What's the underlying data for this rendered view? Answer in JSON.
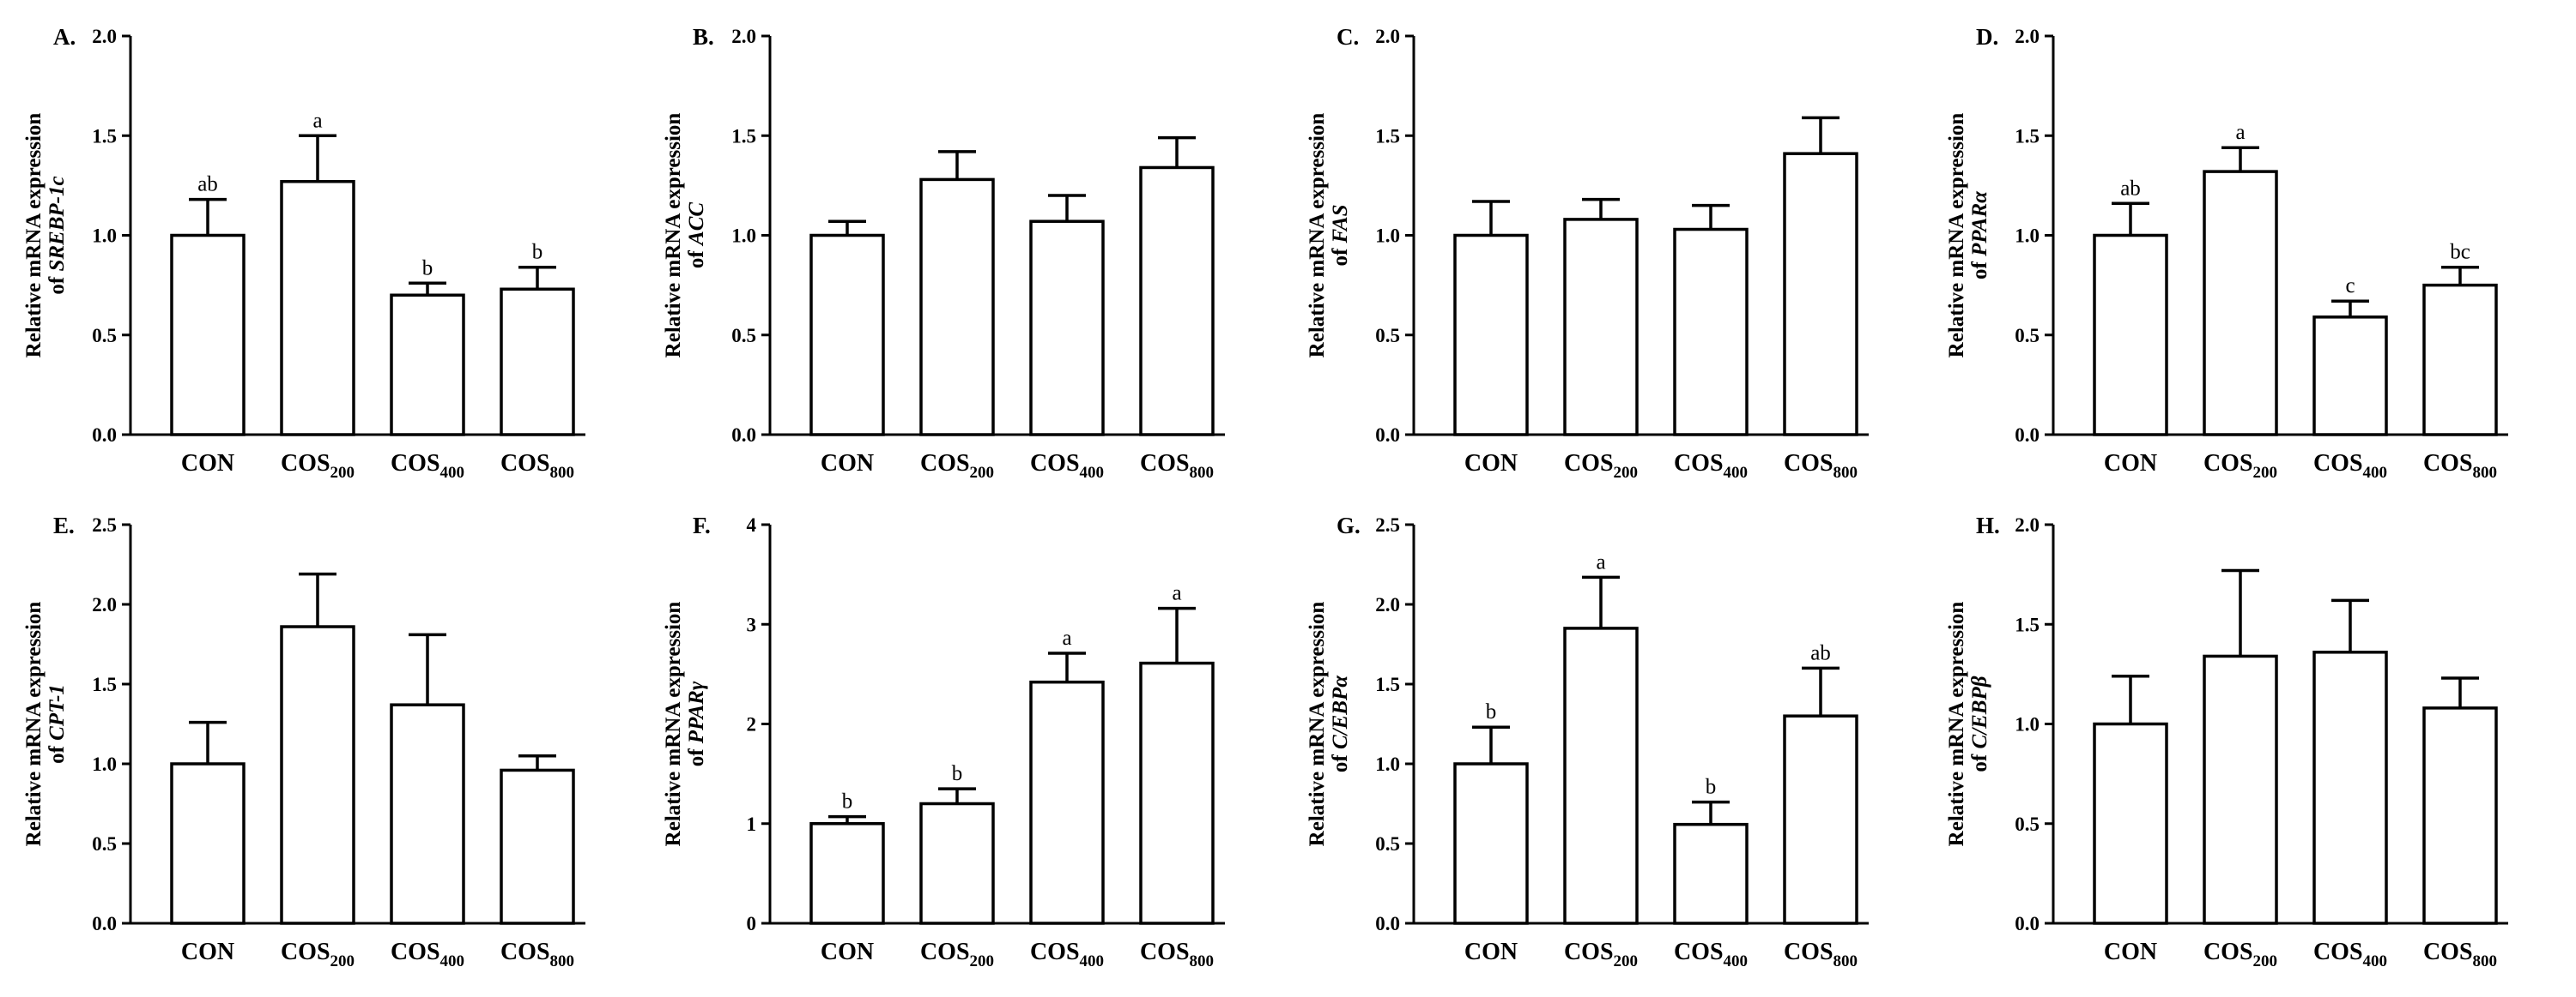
{
  "figure": {
    "background": "#ffffff",
    "bar_fill": "#ffffff",
    "stroke": "#000000"
  },
  "chart_data": [
    {
      "type": "bar",
      "panel": "A.",
      "ylabel_line1": "Relative mRNA expression",
      "ylabel_prefix": "of ",
      "ylabel_gene": "SREBP-1c",
      "categories": [
        {
          "main": "CON",
          "sub": ""
        },
        {
          "main": "COS",
          "sub": "200"
        },
        {
          "main": "COS",
          "sub": "400"
        },
        {
          "main": "COS",
          "sub": "800"
        }
      ],
      "values": [
        1.0,
        1.27,
        0.7,
        0.73
      ],
      "errors": [
        0.18,
        0.23,
        0.06,
        0.11
      ],
      "letters": [
        "ab",
        "a",
        "b",
        "b"
      ],
      "ylim": [
        0,
        2.0
      ],
      "yticks": [
        "0.0",
        "0.5",
        "1.0",
        "1.5",
        "2.0"
      ]
    },
    {
      "type": "bar",
      "panel": "B.",
      "ylabel_line1": "Relative mRNA expression",
      "ylabel_prefix": "of ",
      "ylabel_gene": "ACC",
      "categories": [
        {
          "main": "CON",
          "sub": ""
        },
        {
          "main": "COS",
          "sub": "200"
        },
        {
          "main": "COS",
          "sub": "400"
        },
        {
          "main": "COS",
          "sub": "800"
        }
      ],
      "values": [
        1.0,
        1.28,
        1.07,
        1.34
      ],
      "errors": [
        0.07,
        0.14,
        0.13,
        0.15
      ],
      "letters": [
        "",
        "",
        "",
        ""
      ],
      "ylim": [
        0,
        2.0
      ],
      "yticks": [
        "0.0",
        "0.5",
        "1.0",
        "1.5",
        "2.0"
      ]
    },
    {
      "type": "bar",
      "panel": "C.",
      "ylabel_line1": "Relative mRNA expression",
      "ylabel_prefix": "of ",
      "ylabel_gene": "FAS",
      "categories": [
        {
          "main": "CON",
          "sub": ""
        },
        {
          "main": "COS",
          "sub": "200"
        },
        {
          "main": "COS",
          "sub": "400"
        },
        {
          "main": "COS",
          "sub": "800"
        }
      ],
      "values": [
        1.0,
        1.08,
        1.03,
        1.41
      ],
      "errors": [
        0.17,
        0.1,
        0.12,
        0.18
      ],
      "letters": [
        "",
        "",
        "",
        ""
      ],
      "ylim": [
        0,
        2.0
      ],
      "yticks": [
        "0.0",
        "0.5",
        "1.0",
        "1.5",
        "2.0"
      ]
    },
    {
      "type": "bar",
      "panel": "D.",
      "ylabel_line1": "Relative mRNA expression",
      "ylabel_prefix": "of ",
      "ylabel_gene": "PPARα",
      "categories": [
        {
          "main": "CON",
          "sub": ""
        },
        {
          "main": "COS",
          "sub": "200"
        },
        {
          "main": "COS",
          "sub": "400"
        },
        {
          "main": "COS",
          "sub": "800"
        }
      ],
      "values": [
        1.0,
        1.32,
        0.59,
        0.75
      ],
      "errors": [
        0.16,
        0.12,
        0.08,
        0.09
      ],
      "letters": [
        "ab",
        "a",
        "c",
        "bc"
      ],
      "ylim": [
        0,
        2.0
      ],
      "yticks": [
        "0.0",
        "0.5",
        "1.0",
        "1.5",
        "2.0"
      ]
    },
    {
      "type": "bar",
      "panel": "E.",
      "ylabel_line1": "Relative mRNA expression",
      "ylabel_prefix": "of ",
      "ylabel_gene": "CPT-1",
      "categories": [
        {
          "main": "CON",
          "sub": ""
        },
        {
          "main": "COS",
          "sub": "200"
        },
        {
          "main": "COS",
          "sub": "400"
        },
        {
          "main": "COS",
          "sub": "800"
        }
      ],
      "values": [
        1.0,
        1.86,
        1.37,
        0.96
      ],
      "errors": [
        0.26,
        0.33,
        0.44,
        0.09
      ],
      "letters": [
        "",
        "",
        "",
        ""
      ],
      "ylim": [
        0,
        2.5
      ],
      "yticks": [
        "0.0",
        "0.5",
        "1.0",
        "1.5",
        "2.0",
        "2.5"
      ]
    },
    {
      "type": "bar",
      "panel": "F.",
      "ylabel_line1": "Relative mRNA expression",
      "ylabel_prefix": "of ",
      "ylabel_gene": "PPARγ",
      "categories": [
        {
          "main": "CON",
          "sub": ""
        },
        {
          "main": "COS",
          "sub": "200"
        },
        {
          "main": "COS",
          "sub": "400"
        },
        {
          "main": "COS",
          "sub": "800"
        }
      ],
      "values": [
        1.0,
        1.2,
        2.42,
        2.61
      ],
      "errors": [
        0.07,
        0.15,
        0.29,
        0.55
      ],
      "letters": [
        "b",
        "b",
        "a",
        "a"
      ],
      "ylim": [
        0,
        4
      ],
      "yticks": [
        "0",
        "1",
        "2",
        "3",
        "4"
      ]
    },
    {
      "type": "bar",
      "panel": "G.",
      "ylabel_line1": "Relative mRNA expression",
      "ylabel_prefix": "of ",
      "ylabel_gene": "C/EBPα",
      "categories": [
        {
          "main": "CON",
          "sub": ""
        },
        {
          "main": "COS",
          "sub": "200"
        },
        {
          "main": "COS",
          "sub": "400"
        },
        {
          "main": "COS",
          "sub": "800"
        }
      ],
      "values": [
        1.0,
        1.85,
        0.62,
        1.3
      ],
      "errors": [
        0.23,
        0.32,
        0.14,
        0.3
      ],
      "letters": [
        "b",
        "a",
        "b",
        "ab"
      ],
      "ylim": [
        0,
        2.5
      ],
      "yticks": [
        "0.0",
        "0.5",
        "1.0",
        "1.5",
        "2.0",
        "2.5"
      ]
    },
    {
      "type": "bar",
      "panel": "H.",
      "ylabel_line1": "Relative mRNA expression",
      "ylabel_prefix": "of ",
      "ylabel_gene": "C/EBPβ",
      "categories": [
        {
          "main": "CON",
          "sub": ""
        },
        {
          "main": "COS",
          "sub": "200"
        },
        {
          "main": "COS",
          "sub": "400"
        },
        {
          "main": "COS",
          "sub": "800"
        }
      ],
      "values": [
        1.0,
        1.34,
        1.36,
        1.08
      ],
      "errors": [
        0.24,
        0.43,
        0.26,
        0.15
      ],
      "letters": [
        "",
        "",
        "",
        ""
      ],
      "ylim": [
        0,
        2.0
      ],
      "yticks": [
        "0.0",
        "0.5",
        "1.0",
        "1.5",
        "2.0"
      ]
    }
  ]
}
